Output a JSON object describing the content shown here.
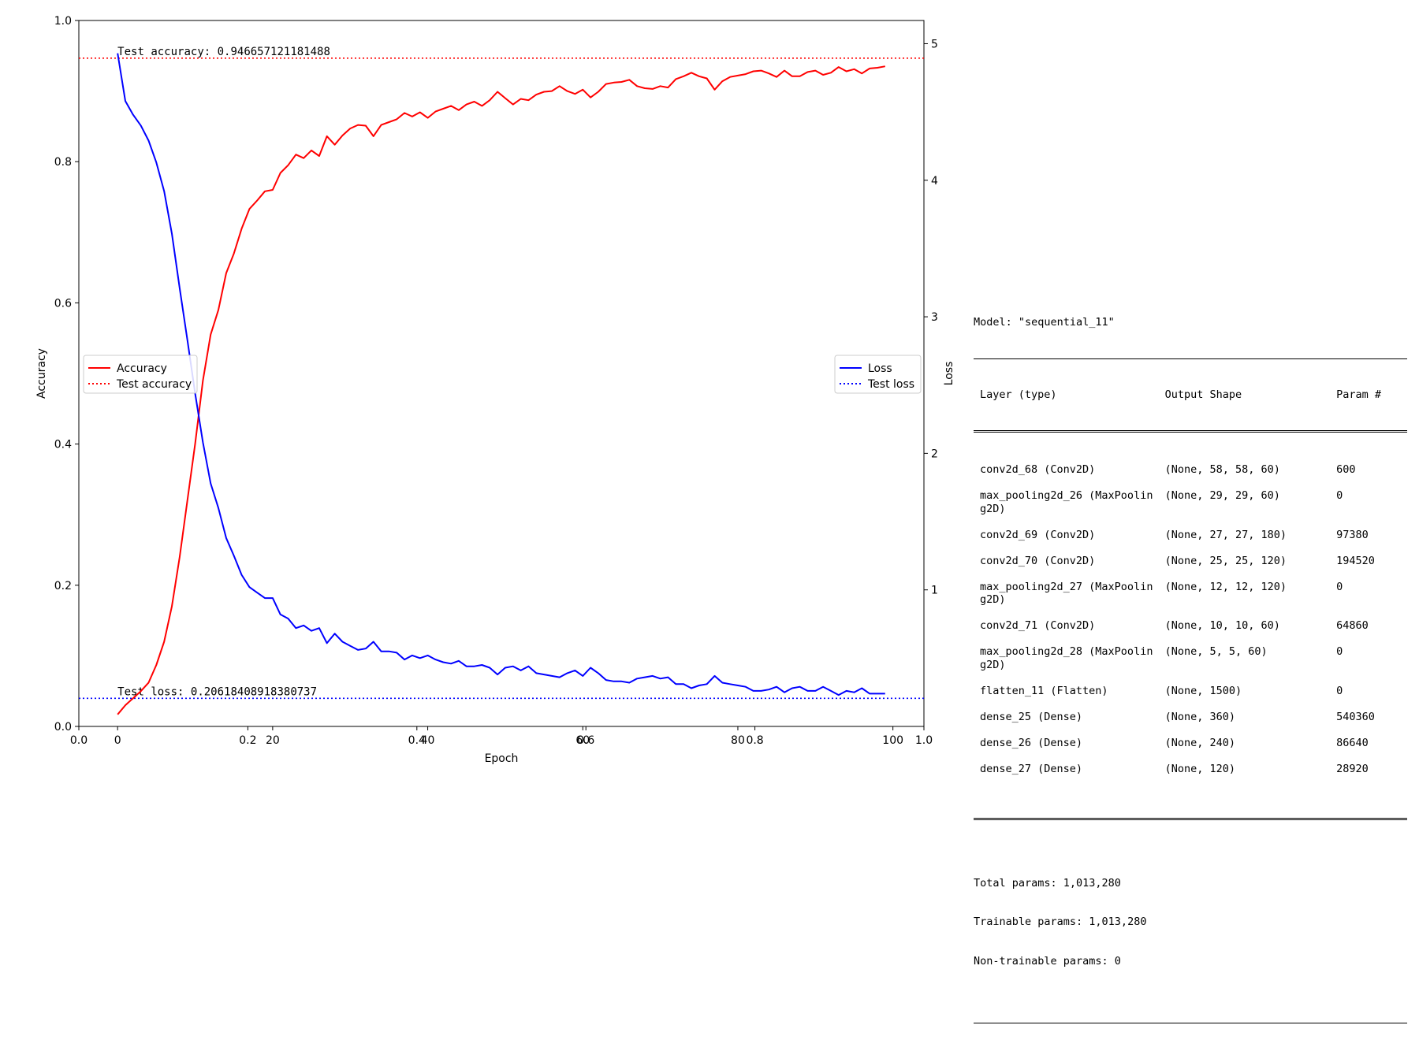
{
  "chart_data": {
    "type": "line",
    "xlabel": "Epoch",
    "ylabel_left": "Accuracy",
    "ylabel_right": "Loss",
    "x_range": [
      -5,
      104
    ],
    "ylim_left": [
      0.0,
      1.0
    ],
    "ylim_right": [
      0.0,
      5.17
    ],
    "left_ticks": [
      "0.0",
      "0.2",
      "0.4",
      "0.6",
      "0.8",
      "1.0"
    ],
    "right_ticks": [
      "1",
      "2",
      "3",
      "4",
      "5"
    ],
    "x_ticks": [
      "0",
      "20",
      "40",
      "60",
      "80",
      "100"
    ],
    "overlay_x_ticks": [
      "0.0",
      "0.2",
      "0.4",
      "0.6",
      "0.8",
      "1.0"
    ],
    "grid": false,
    "colors": {
      "accuracy": "#ff0000",
      "loss": "#0000ff"
    },
    "series": [
      {
        "name": "Accuracy",
        "axis": "left",
        "style": "solid",
        "values": [
          0.017,
          0.03,
          0.04,
          0.05,
          0.062,
          0.087,
          0.12,
          0.17,
          0.24,
          0.32,
          0.4,
          0.49,
          0.555,
          0.59,
          0.642,
          0.67,
          0.705,
          0.733,
          0.745,
          0.758,
          0.76,
          0.784,
          0.795,
          0.81,
          0.805,
          0.816,
          0.808,
          0.836,
          0.824,
          0.837,
          0.847,
          0.852,
          0.851,
          0.836,
          0.852,
          0.856,
          0.86,
          0.869,
          0.864,
          0.87,
          0.862,
          0.871,
          0.875,
          0.879,
          0.873,
          0.881,
          0.885,
          0.879,
          0.887,
          0.899,
          0.89,
          0.881,
          0.889,
          0.887,
          0.895,
          0.899,
          0.9,
          0.907,
          0.9,
          0.896,
          0.902,
          0.891,
          0.899,
          0.91,
          0.912,
          0.913,
          0.916,
          0.907,
          0.904,
          0.903,
          0.907,
          0.905,
          0.917,
          0.921,
          0.926,
          0.921,
          0.918,
          0.902,
          0.914,
          0.92,
          0.922,
          0.924,
          0.928,
          0.929,
          0.925,
          0.92,
          0.929,
          0.921,
          0.921,
          0.927,
          0.929,
          0.923,
          0.926,
          0.934,
          0.928,
          0.931,
          0.925,
          0.932,
          0.933,
          0.935
        ]
      },
      {
        "name": "Loss",
        "axis": "right",
        "style": "solid",
        "values": [
          4.93,
          4.58,
          4.48,
          4.4,
          4.29,
          4.13,
          3.92,
          3.61,
          3.21,
          2.83,
          2.44,
          2.08,
          1.78,
          1.6,
          1.38,
          1.25,
          1.11,
          1.02,
          0.98,
          0.94,
          0.94,
          0.82,
          0.79,
          0.72,
          0.74,
          0.7,
          0.72,
          0.61,
          0.68,
          0.62,
          0.59,
          0.56,
          0.57,
          0.62,
          0.55,
          0.55,
          0.54,
          0.49,
          0.52,
          0.5,
          0.52,
          0.49,
          0.47,
          0.46,
          0.48,
          0.44,
          0.44,
          0.45,
          0.43,
          0.38,
          0.43,
          0.44,
          0.41,
          0.44,
          0.39,
          0.38,
          0.37,
          0.36,
          0.39,
          0.41,
          0.37,
          0.43,
          0.39,
          0.34,
          0.33,
          0.33,
          0.32,
          0.35,
          0.36,
          0.37,
          0.35,
          0.36,
          0.31,
          0.31,
          0.28,
          0.3,
          0.31,
          0.37,
          0.32,
          0.31,
          0.3,
          0.29,
          0.26,
          0.26,
          0.27,
          0.29,
          0.25,
          0.28,
          0.29,
          0.26,
          0.26,
          0.29,
          0.26,
          0.23,
          0.26,
          0.25,
          0.28,
          0.24,
          0.24,
          0.24
        ]
      }
    ],
    "reference_lines": [
      {
        "name": "Test accuracy",
        "axis": "left",
        "value": 0.946657121181488,
        "style": "dotted",
        "color": "#ff0000",
        "annotation": "Test accuracy: 0.946657121181488"
      },
      {
        "name": "Test loss",
        "axis": "right",
        "value": 0.20618408918380737,
        "style": "dotted",
        "color": "#0000ff",
        "annotation": "Test loss: 0.20618408918380737"
      }
    ],
    "legends": [
      {
        "placement": "center-left",
        "entries": [
          "Accuracy",
          "Test accuracy"
        ]
      },
      {
        "placement": "center-right",
        "entries": [
          "Loss",
          "Test loss"
        ]
      }
    ]
  },
  "model_summary": {
    "title": "Model: \"sequential_11\"",
    "headers": [
      "Layer (type)",
      "Output Shape",
      "Param #"
    ],
    "rows": [
      [
        "conv2d_68 (Conv2D)",
        "(None, 58, 58, 60)",
        "600"
      ],
      [
        "max_pooling2d_26 (MaxPoolin\ng2D)",
        "(None, 29, 29, 60)",
        "0"
      ],
      [
        "conv2d_69 (Conv2D)",
        "(None, 27, 27, 180)",
        "97380"
      ],
      [
        "conv2d_70 (Conv2D)",
        "(None, 25, 25, 120)",
        "194520"
      ],
      [
        "max_pooling2d_27 (MaxPoolin\ng2D)",
        "(None, 12, 12, 120)",
        "0"
      ],
      [
        "conv2d_71 (Conv2D)",
        "(None, 10, 10, 60)",
        "64860"
      ],
      [
        "max_pooling2d_28 (MaxPoolin\ng2D)",
        "(None, 5, 5, 60)",
        "0"
      ],
      [
        "flatten_11 (Flatten)",
        "(None, 1500)",
        "0"
      ],
      [
        "dense_25 (Dense)",
        "(None, 360)",
        "540360"
      ],
      [
        "dense_26 (Dense)",
        "(None, 240)",
        "86640"
      ],
      [
        "dense_27 (Dense)",
        "(None, 120)",
        "28920"
      ]
    ],
    "total_params": "Total params: 1,013,280",
    "trainable_params": "Trainable params: 1,013,280",
    "non_trainable_params": "Non-trainable params: 0"
  }
}
